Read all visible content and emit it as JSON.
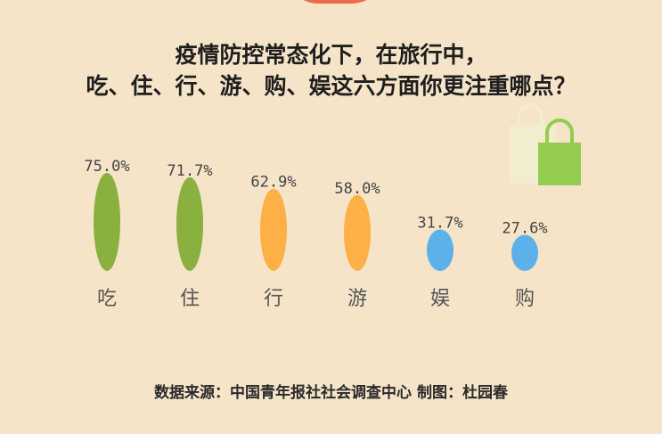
{
  "title": {
    "line1": "疫情防控常态化下，在旅行中，",
    "line2": "吃、住、行、游、购、娱这六方面你更注重哪点？"
  },
  "source": {
    "text": "数据来源：中国青年报社社会调查中心  制图：杜园春"
  },
  "icons": {
    "top_arc": "decorative-arc-shape",
    "bags": "shopping-bag-icon"
  },
  "colors": {
    "background": "#f6e4c8",
    "green": "#8ab03f",
    "orange": "#fcb045",
    "blue": "#5cb1e8",
    "accent_arc": "#ef6a4c",
    "bag_front": "#93cc4e",
    "bag_back": "#f3edd0"
  },
  "chart_data": {
    "type": "bar",
    "categories": [
      "吃",
      "住",
      "行",
      "游",
      "娱",
      "购"
    ],
    "values": [
      75.0,
      71.7,
      62.9,
      58.0,
      31.7,
      27.6
    ],
    "value_labels": [
      "75.0%",
      "71.7%",
      "62.9%",
      "58.0%",
      "31.7%",
      "27.6%"
    ],
    "value_unit": "%",
    "colors": [
      "#8ab03f",
      "#8ab03f",
      "#fcb045",
      "#fcb045",
      "#5cb1e8",
      "#5cb1e8"
    ],
    "title": "疫情防控常态化下，在旅行中，吃、住、行、游、购、娱这六方面你更注重哪点？",
    "xlabel": "",
    "ylabel": "",
    "ylim": [
      0,
      100
    ],
    "grid": false,
    "legend": "none"
  }
}
